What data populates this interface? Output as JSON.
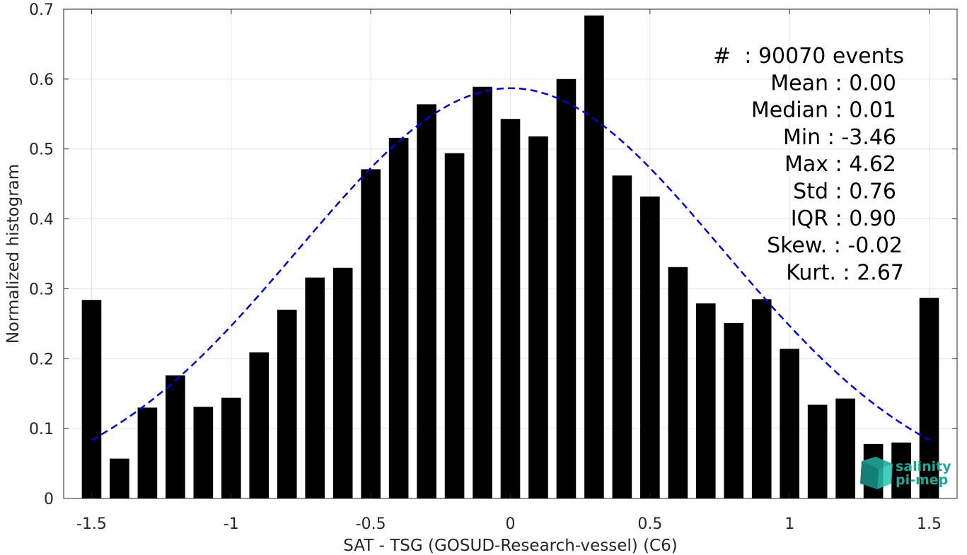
{
  "chart_data": {
    "type": "bar",
    "xlabel": "SAT - TSG (GOSUD-Research-vessel) (C6)",
    "ylabel": "Normalized histogram",
    "xlim": [
      -1.6,
      1.6
    ],
    "ylim": [
      0,
      0.7
    ],
    "grid": true,
    "bar_width": 0.07,
    "xticks": [
      -1.5,
      -1,
      -0.5,
      0,
      0.5,
      1,
      1.5
    ],
    "xtick_labels": [
      "-1.5",
      "-1",
      "-0.5",
      "0",
      "0.5",
      "1",
      "1.5"
    ],
    "yticks": [
      0,
      0.1,
      0.2,
      0.3,
      0.4,
      0.5,
      0.6,
      0.7
    ],
    "ytick_labels": [
      "0",
      "0.1",
      "0.2",
      "0.3",
      "0.4",
      "0.5",
      "0.6",
      "0.7"
    ],
    "x": [
      -1.5,
      -1.4,
      -1.3,
      -1.2,
      -1.1,
      -1.0,
      -0.9,
      -0.8,
      -0.7,
      -0.6,
      -0.5,
      -0.4,
      -0.3,
      -0.2,
      -0.1,
      0.0,
      0.1,
      0.2,
      0.3,
      0.4,
      0.5,
      0.6,
      0.7,
      0.8,
      0.9,
      1.0,
      1.1,
      1.2,
      1.3,
      1.4,
      1.5
    ],
    "values": [
      0.284,
      0.057,
      0.13,
      0.176,
      0.131,
      0.144,
      0.209,
      0.27,
      0.316,
      0.33,
      0.471,
      0.516,
      0.564,
      0.494,
      0.589,
      0.543,
      0.518,
      0.6,
      0.691,
      0.462,
      0.432,
      0.331,
      0.279,
      0.251,
      0.285,
      0.214,
      0.134,
      0.143,
      0.078,
      0.08,
      0.287
    ],
    "bar_color": "#000000",
    "fit_curve": {
      "style": "dashed",
      "color": "#0000dd",
      "mean": 0.0,
      "std": 0.76,
      "peak": 0.587,
      "x_range": [
        -1.5,
        1.5
      ]
    },
    "annotations": [
      "#  : 90070 events",
      "Mean : 0.00",
      "Median : 0.01",
      "Min : -3.46",
      "Max : 4.62",
      "Std : 0.76",
      "IQR : 0.90",
      "Skew. : -0.02",
      "Kurt. : 2.67"
    ],
    "annotation_placement": "top-right"
  },
  "logo": {
    "line1": "salinity",
    "line2": "pi-mep",
    "color": "#1fa89a",
    "placement": "bottom-right"
  }
}
